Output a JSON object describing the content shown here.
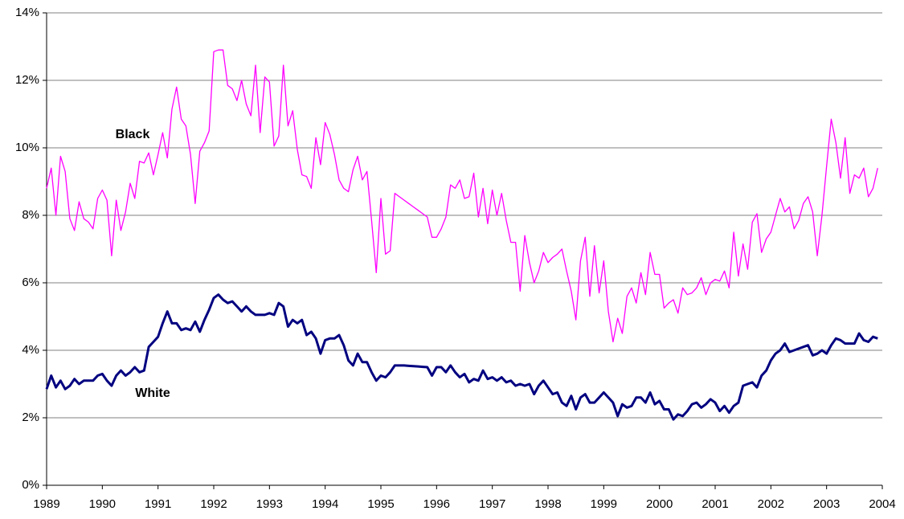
{
  "chart_data": {
    "type": "line",
    "annotations": [
      "Black",
      "White"
    ],
    "x": [
      1989,
      1989.083,
      1989.167,
      1989.25,
      1989.333,
      1989.417,
      1989.5,
      1989.583,
      1989.667,
      1989.75,
      1989.833,
      1989.917,
      1990,
      1990.083,
      1990.167,
      1990.25,
      1990.333,
      1990.417,
      1990.5,
      1990.583,
      1990.667,
      1990.75,
      1990.833,
      1990.917,
      1991,
      1991.083,
      1991.167,
      1991.25,
      1991.333,
      1991.417,
      1991.5,
      1991.583,
      1991.667,
      1991.75,
      1991.833,
      1991.917,
      1992,
      1992.083,
      1992.167,
      1992.25,
      1992.333,
      1992.417,
      1992.5,
      1992.583,
      1992.667,
      1992.75,
      1992.833,
      1992.917,
      1993,
      1993.083,
      1993.167,
      1993.25,
      1993.333,
      1993.417,
      1993.5,
      1993.583,
      1993.667,
      1993.75,
      1993.833,
      1993.917,
      1994,
      1994.083,
      1994.167,
      1994.25,
      1994.333,
      1994.417,
      1994.5,
      1994.583,
      1994.667,
      1994.75,
      1994.833,
      1994.917,
      1995,
      1995.083,
      1995.167,
      1995.25,
      1995.333,
      1995.417,
      1995.5,
      1995.583,
      1995.667,
      1995.75,
      1995.833,
      1995.917,
      1996,
      1996.083,
      1996.167,
      1996.25,
      1996.333,
      1996.417,
      1996.5,
      1996.583,
      1996.667,
      1996.75,
      1996.833,
      1996.917,
      1997,
      1997.083,
      1997.167,
      1997.25,
      1997.333,
      1997.417,
      1997.5,
      1997.583,
      1997.667,
      1997.75,
      1997.833,
      1997.917,
      1998,
      1998.083,
      1998.167,
      1998.25,
      1998.333,
      1998.417,
      1998.5,
      1998.583,
      1998.667,
      1998.75,
      1998.833,
      1998.917,
      1999,
      1999.083,
      1999.167,
      1999.25,
      1999.333,
      1999.417,
      1999.5,
      1999.583,
      1999.667,
      1999.75,
      1999.833,
      1999.917,
      2000,
      2000.083,
      2000.167,
      2000.25,
      2000.333,
      2000.417,
      2000.5,
      2000.583,
      2000.667,
      2000.75,
      2000.833,
      2000.917,
      2001,
      2001.083,
      2001.167,
      2001.25,
      2001.333,
      2001.417,
      2001.5,
      2001.583,
      2001.667,
      2001.75,
      2001.833,
      2001.917,
      2002,
      2002.083,
      2002.167,
      2002.25,
      2002.333,
      2002.417,
      2002.5,
      2002.583,
      2002.667,
      2002.75,
      2002.833,
      2002.917,
      2003,
      2003.083,
      2003.167,
      2003.25,
      2003.333,
      2003.417,
      2003.5,
      2003.583,
      2003.667,
      2003.75,
      2003.833,
      2003.917
    ],
    "series": [
      {
        "color": "#ff00ff",
        "width": 1.3,
        "values": [
          8.8,
          9.4,
          8.0,
          9.75,
          9.3,
          7.9,
          7.55,
          8.4,
          7.9,
          7.8,
          7.6,
          8.5,
          8.75,
          8.45,
          6.8,
          8.45,
          7.55,
          8.1,
          8.95,
          8.5,
          9.6,
          9.55,
          9.85,
          9.2,
          9.8,
          10.45,
          9.7,
          11.15,
          11.8,
          10.85,
          10.65,
          9.8,
          8.35,
          9.9,
          10.15,
          10.5,
          12.85,
          12.9,
          12.9,
          11.85,
          11.75,
          11.4,
          12.0,
          11.3,
          10.95,
          12.45,
          10.45,
          12.1,
          11.95,
          10.05,
          10.35,
          12.45,
          10.65,
          11.1,
          9.95,
          9.2,
          9.15,
          8.8,
          10.3,
          9.5,
          10.75,
          10.4,
          9.8,
          9.05,
          8.8,
          8.7,
          9.35,
          9.75,
          9.05,
          9.3,
          7.85,
          6.3,
          8.5,
          6.85,
          6.95,
          8.65,
          8.55,
          8.45,
          8.35,
          8.25,
          8.15,
          8.05,
          7.95,
          7.35,
          7.35,
          7.6,
          7.95,
          8.9,
          8.8,
          9.05,
          8.5,
          8.55,
          9.25,
          7.95,
          8.8,
          7.75,
          8.75,
          8.0,
          8.65,
          7.85,
          7.2,
          7.2,
          5.75,
          7.4,
          6.6,
          6.0,
          6.35,
          6.9,
          6.6,
          6.75,
          6.85,
          7.0,
          6.35,
          5.75,
          4.9,
          6.65,
          7.35,
          5.6,
          7.1,
          5.7,
          6.65,
          5.15,
          4.25,
          4.95,
          4.5,
          5.6,
          5.85,
          5.4,
          6.3,
          5.65,
          6.9,
          6.25,
          6.25,
          5.25,
          5.4,
          5.5,
          5.1,
          5.85,
          5.65,
          5.7,
          5.85,
          6.15,
          5.65,
          6.0,
          6.1,
          6.05,
          6.35,
          5.85,
          7.5,
          6.2,
          7.15,
          6.4,
          7.8,
          8.05,
          6.9,
          7.3,
          7.5,
          8.0,
          8.5,
          8.1,
          8.25,
          7.6,
          7.85,
          8.35,
          8.55,
          8.1,
          6.8,
          8.0,
          9.45,
          10.85,
          10.15,
          9.1,
          10.3,
          8.65,
          9.2,
          9.1,
          9.4,
          8.55,
          8.8,
          9.4
        ]
      },
      {
        "color": "#000080",
        "width": 3,
        "values": [
          2.85,
          3.25,
          2.9,
          3.1,
          2.85,
          2.95,
          3.15,
          3.0,
          3.1,
          3.1,
          3.1,
          3.25,
          3.3,
          3.1,
          2.95,
          3.25,
          3.4,
          3.25,
          3.35,
          3.5,
          3.35,
          3.4,
          4.1,
          4.25,
          4.4,
          4.8,
          5.15,
          4.8,
          4.8,
          4.6,
          4.65,
          4.6,
          4.85,
          4.55,
          4.9,
          5.2,
          5.55,
          5.65,
          5.5,
          5.4,
          5.45,
          5.3,
          5.15,
          5.3,
          5.15,
          5.05,
          5.05,
          5.05,
          5.1,
          5.05,
          5.4,
          5.3,
          4.7,
          4.9,
          4.8,
          4.9,
          4.45,
          4.55,
          4.35,
          3.9,
          4.3,
          4.35,
          4.35,
          4.45,
          4.15,
          3.7,
          3.55,
          3.9,
          3.65,
          3.65,
          3.35,
          3.1,
          3.25,
          3.2,
          3.35,
          3.55,
          3.55,
          3.55,
          3.54,
          3.53,
          3.52,
          3.51,
          3.5,
          3.25,
          3.5,
          3.5,
          3.35,
          3.55,
          3.35,
          3.2,
          3.3,
          3.05,
          3.15,
          3.1,
          3.4,
          3.15,
          3.2,
          3.1,
          3.2,
          3.05,
          3.1,
          2.95,
          3.0,
          2.95,
          3.0,
          2.7,
          2.95,
          3.1,
          2.9,
          2.7,
          2.75,
          2.45,
          2.35,
          2.65,
          2.25,
          2.6,
          2.7,
          2.45,
          2.45,
          2.6,
          2.75,
          2.6,
          2.45,
          2.05,
          2.4,
          2.3,
          2.35,
          2.6,
          2.6,
          2.45,
          2.75,
          2.4,
          2.5,
          2.25,
          2.25,
          1.95,
          2.1,
          2.05,
          2.2,
          2.4,
          2.45,
          2.3,
          2.4,
          2.55,
          2.45,
          2.2,
          2.35,
          2.15,
          2.35,
          2.45,
          2.95,
          3.0,
          3.05,
          2.9,
          3.25,
          3.4,
          3.7,
          3.9,
          4.0,
          4.2,
          3.95,
          4.0,
          4.05,
          4.1,
          4.15,
          3.85,
          3.9,
          4.0,
          3.9,
          4.15,
          4.35,
          4.3,
          4.2,
          4.2,
          4.2,
          4.5,
          4.3,
          4.25,
          4.4,
          4.35
        ]
      }
    ],
    "xlim": [
      1989,
      2004
    ],
    "xticks": [
      1989,
      1990,
      1991,
      1992,
      1993,
      1994,
      1995,
      1996,
      1997,
      1998,
      1999,
      2000,
      2001,
      2002,
      2003,
      2004
    ],
    "ylim": [
      0,
      14
    ],
    "yticks": [
      {
        "value": 0,
        "label": "0%"
      },
      {
        "value": 2,
        "label": "2%"
      },
      {
        "value": 4,
        "label": "4%"
      },
      {
        "value": 6,
        "label": "6%"
      },
      {
        "value": 8,
        "label": "8%"
      },
      {
        "value": 10,
        "label": "10%"
      },
      {
        "value": 12,
        "label": "12%"
      },
      {
        "value": 14,
        "label": "14%"
      }
    ],
    "grid": true
  }
}
